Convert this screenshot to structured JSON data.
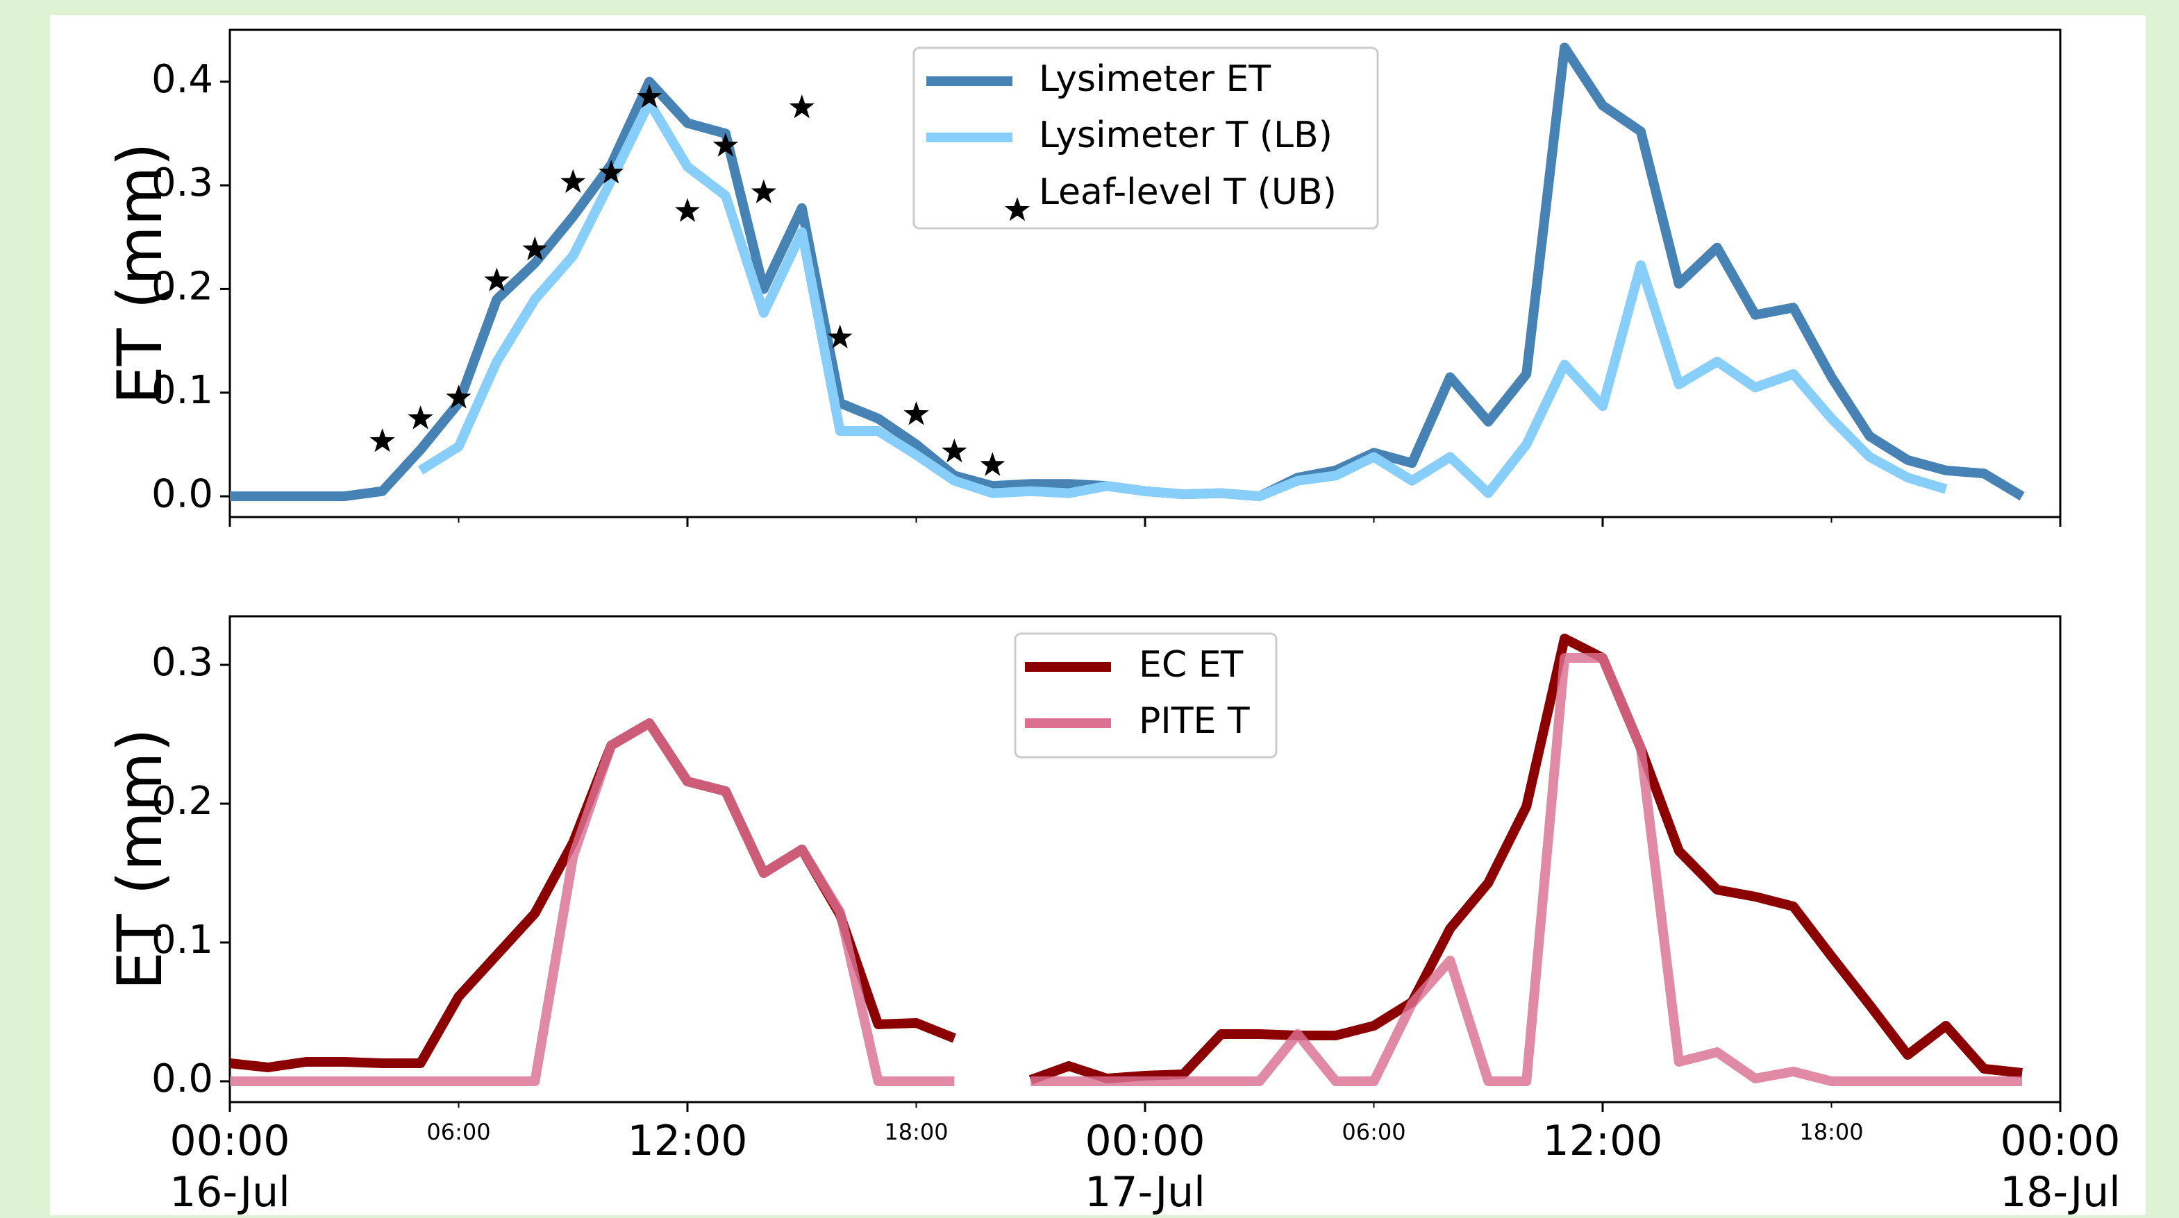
{
  "chart_data": [
    {
      "type": "line",
      "ylabel": "ET (mm)",
      "ylim": [
        -0.02,
        0.45
      ],
      "yticks": [
        0.0,
        0.1,
        0.2,
        0.3,
        0.4
      ],
      "ytick_labels": [
        "0.0",
        "0.1",
        "0.2",
        "0.3",
        "0.4"
      ],
      "xlim": [
        0,
        48
      ],
      "grid": false,
      "legend_position": "top-center",
      "series": [
        {
          "name": "Lysimeter ET",
          "kind": "line",
          "color": "#4682b4",
          "x": [
            0,
            1,
            2,
            3,
            4,
            5,
            6,
            7,
            8,
            9,
            10,
            11,
            12,
            13,
            14,
            15,
            16,
            17,
            18,
            19,
            20,
            21,
            22,
            23,
            24,
            25,
            26,
            27,
            28,
            29,
            30,
            31,
            32,
            33,
            34,
            35,
            36,
            37,
            38,
            39,
            40,
            41,
            42,
            43,
            44,
            45,
            46,
            47
          ],
          "y": [
            0.0,
            0.0,
            0.0,
            0.0,
            0.005,
            0.045,
            0.09,
            0.19,
            0.225,
            0.27,
            0.32,
            0.4,
            0.36,
            0.35,
            0.2,
            0.278,
            0.09,
            0.075,
            0.05,
            0.02,
            0.01,
            0.012,
            0.012,
            0.01,
            0.005,
            0.002,
            0.003,
            0.0,
            0.018,
            0.025,
            0.042,
            0.032,
            0.115,
            0.072,
            0.118,
            0.433,
            0.377,
            0.352,
            0.205,
            0.24,
            0.175,
            0.182,
            0.115,
            0.058,
            0.035,
            0.025,
            0.022,
            0.0
          ]
        },
        {
          "name": "Lysimeter T (LB)",
          "kind": "line",
          "color": "#87cefa",
          "x": [
            5,
            6,
            7,
            8,
            9,
            10,
            11,
            12,
            13,
            14,
            15,
            16,
            17,
            18,
            19,
            20,
            21,
            22,
            23,
            24,
            25,
            26,
            27,
            28,
            29,
            30,
            31,
            32,
            33,
            34,
            35,
            36,
            37,
            38,
            39,
            40,
            41,
            42,
            43,
            44,
            45
          ],
          "y": [
            0.025,
            0.048,
            0.13,
            0.19,
            0.232,
            0.305,
            0.38,
            0.318,
            0.29,
            0.177,
            0.255,
            0.063,
            0.063,
            0.04,
            0.015,
            0.003,
            0.005,
            0.003,
            0.01,
            0.005,
            0.002,
            0.003,
            0.0,
            0.015,
            0.02,
            0.038,
            0.015,
            0.038,
            0.003,
            0.05,
            0.127,
            0.087,
            0.223,
            0.108,
            0.13,
            0.105,
            0.118,
            0.075,
            0.038,
            0.018,
            0.007
          ]
        },
        {
          "name": "Leaf-level T (UB)",
          "kind": "marker",
          "marker": "star",
          "color": "#000000",
          "x": [
            4,
            5,
            6,
            7,
            8,
            9,
            10,
            11,
            12,
            13,
            14,
            15,
            16,
            18,
            19,
            20
          ],
          "y": [
            0.053,
            0.075,
            0.095,
            0.208,
            0.238,
            0.303,
            0.312,
            0.385,
            0.275,
            0.338,
            0.293,
            0.375,
            0.153,
            0.079,
            0.043,
            0.03
          ]
        }
      ]
    },
    {
      "type": "line",
      "ylabel": "ET (mm)",
      "ylim": [
        -0.015,
        0.335
      ],
      "yticks": [
        0.0,
        0.1,
        0.2,
        0.3
      ],
      "ytick_labels": [
        "0.0",
        "0.1",
        "0.2",
        "0.3"
      ],
      "xlim": [
        0,
        48
      ],
      "grid": false,
      "legend_position": "top-center",
      "xticks_major": [
        0,
        12,
        24,
        36,
        48
      ],
      "xtick_major_labels": [
        [
          "00:00",
          "16-Jul"
        ],
        [
          "12:00",
          ""
        ],
        [
          "00:00",
          "17-Jul"
        ],
        [
          "12:00",
          ""
        ],
        [
          "00:00",
          "18-Jul"
        ]
      ],
      "xticks_minor": [
        6,
        18,
        30,
        42
      ],
      "xtick_minor_labels": [
        "06:00",
        "18:00",
        "06:00",
        "18:00"
      ],
      "series": [
        {
          "name": "EC ET",
          "kind": "line",
          "color": "#8b0000",
          "x": [
            0,
            1,
            2,
            3,
            4,
            5,
            6,
            7,
            8,
            9,
            10,
            11,
            12,
            13,
            14,
            15,
            16,
            17,
            18,
            19,
            null,
            21,
            22,
            23,
            24,
            25,
            26,
            27,
            28,
            29,
            30,
            31,
            32,
            33,
            34,
            35,
            36,
            37,
            38,
            39,
            40,
            41,
            42,
            43,
            44,
            45,
            46,
            47
          ],
          "y": [
            0.013,
            0.01,
            0.014,
            0.014,
            0.013,
            0.013,
            0.061,
            0.091,
            0.121,
            0.172,
            0.242,
            0.258,
            0.216,
            0.209,
            0.15,
            0.167,
            0.12,
            0.041,
            0.042,
            0.031,
            null,
            0.001,
            0.011,
            0.002,
            0.004,
            0.005,
            0.034,
            0.034,
            0.033,
            0.033,
            0.04,
            0.057,
            0.11,
            0.143,
            0.198,
            0.319,
            0.305,
            0.24,
            0.166,
            0.138,
            0.133,
            0.126,
            0.09,
            0.055,
            0.019,
            0.04,
            0.009,
            0.006
          ]
        },
        {
          "name": "PITE T",
          "kind": "line",
          "color": "#db7093",
          "x": [
            0,
            1,
            2,
            3,
            4,
            5,
            6,
            7,
            8,
            9,
            10,
            11,
            12,
            13,
            14,
            15,
            16,
            17,
            18,
            19,
            null,
            21,
            22,
            23,
            24,
            25,
            26,
            27,
            28,
            29,
            30,
            31,
            32,
            33,
            34,
            35,
            36,
            37,
            38,
            39,
            40,
            41,
            42,
            43,
            44,
            45,
            46,
            47
          ],
          "y": [
            0.0,
            0.0,
            0.0,
            0.0,
            0.0,
            0.0,
            0.0,
            0.0,
            0.0,
            0.162,
            0.242,
            0.258,
            0.216,
            0.209,
            0.15,
            0.167,
            0.122,
            0.0,
            0.0,
            0.0,
            null,
            0.0,
            0.0,
            0.0,
            0.0,
            0.0,
            0.0,
            0.0,
            0.034,
            0.0,
            0.0,
            0.056,
            0.087,
            0.0,
            0.0,
            0.305,
            0.305,
            0.24,
            0.014,
            0.021,
            0.002,
            0.007,
            0.0,
            0.0,
            0.0,
            0.0,
            0.0,
            0.0
          ]
        }
      ]
    }
  ]
}
